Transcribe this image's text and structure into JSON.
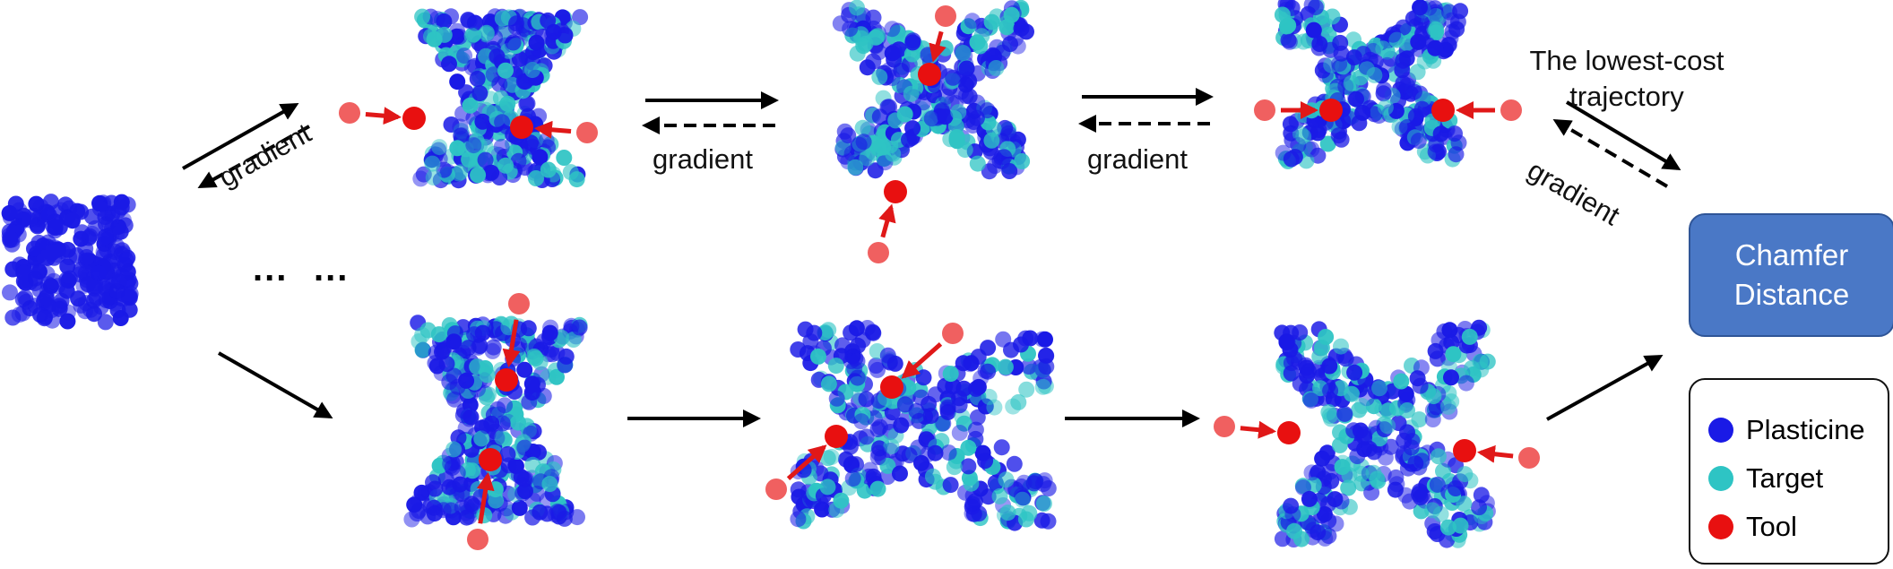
{
  "title_lines": [
    "The lowest-cost",
    "trajectory"
  ],
  "gradient_label": "gradient",
  "ellipsis": "...",
  "chamfer_box": {
    "line1": "Chamfer",
    "line2": "Distance"
  },
  "legend": {
    "items": [
      {
        "label": "Plasticine",
        "color": "#1a1ae6"
      },
      {
        "label": "Target",
        "color": "#2ec4c4"
      },
      {
        "label": "Tool",
        "color": "#e81010"
      }
    ]
  },
  "colors": {
    "plasticine": "#1a1ae6",
    "target": "#2ec4c4",
    "tool": "#e81010",
    "tool_faded": "#f06060",
    "tool_arrow": "#e01818",
    "chamfer_fill": "#4a78c6"
  }
}
